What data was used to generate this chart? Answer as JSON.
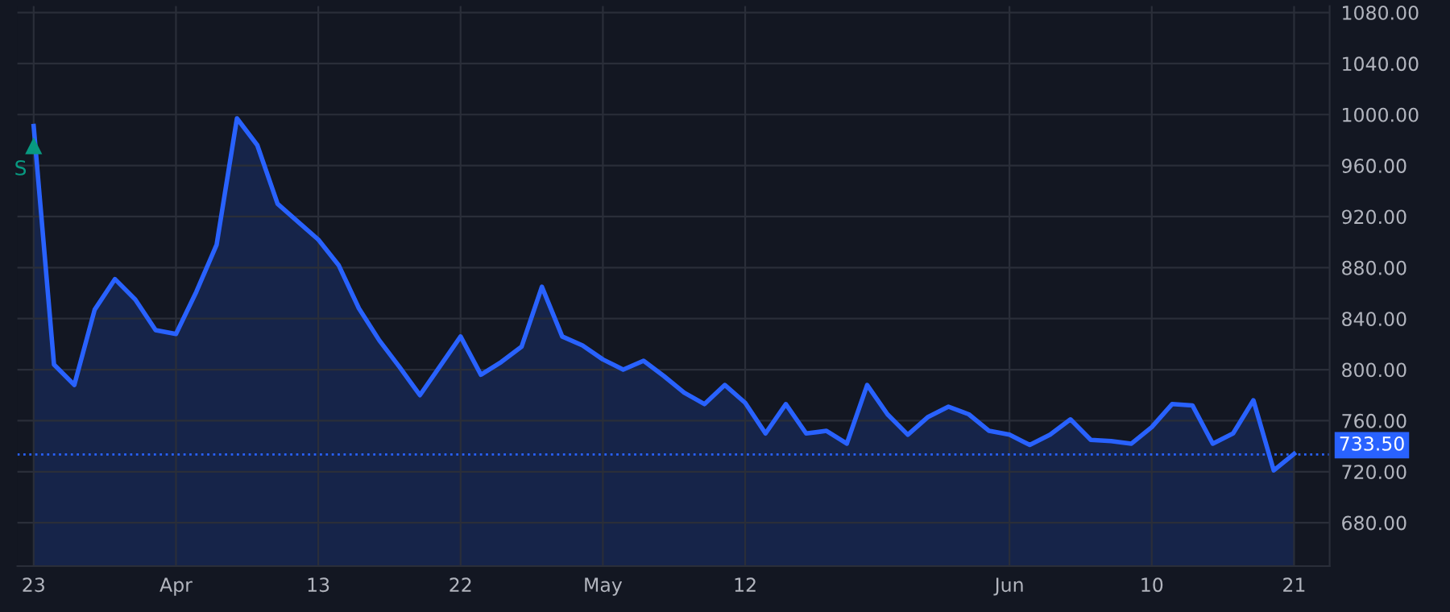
{
  "chart_data": {
    "type": "area",
    "categories": [
      "23",
      null,
      null,
      null,
      null,
      null,
      null,
      "Apr",
      null,
      null,
      null,
      null,
      null,
      null,
      "13",
      null,
      null,
      null,
      null,
      null,
      null,
      "22",
      null,
      null,
      null,
      null,
      null,
      null,
      "May",
      null,
      null,
      null,
      null,
      null,
      null,
      "12",
      null,
      null,
      null,
      null,
      null,
      null,
      null,
      null,
      null,
      null,
      null,
      null,
      "Jun",
      null,
      null,
      null,
      null,
      null,
      null,
      "10",
      null,
      null,
      null,
      null,
      null,
      null,
      "21"
    ],
    "series": [
      {
        "color": "#2962ff",
        "values": [
          991,
          804,
          788,
          847,
          871,
          855,
          831,
          828,
          861,
          898,
          997,
          976,
          930,
          916,
          902,
          882,
          848,
          823,
          802,
          780,
          803,
          826,
          796,
          806,
          818,
          865,
          826,
          819,
          808,
          800,
          807,
          795,
          782,
          773,
          788,
          774,
          750,
          773,
          750,
          752,
          742,
          788,
          765,
          749,
          763,
          771,
          765,
          752,
          749,
          741,
          749,
          761,
          745,
          744,
          742,
          755,
          773,
          772,
          742,
          750,
          776,
          721,
          734
        ]
      }
    ],
    "ylim": [
      646,
      1085
    ],
    "yticks": [
      {
        "value": 680,
        "label": "680.00"
      },
      {
        "value": 720,
        "label": "720.00"
      },
      {
        "value": 760,
        "label": "760.00"
      },
      {
        "value": 800,
        "label": "800.00"
      },
      {
        "value": 840,
        "label": "840.00"
      },
      {
        "value": 880,
        "label": "880.00"
      },
      {
        "value": 920,
        "label": "920.00"
      },
      {
        "value": 960,
        "label": "960.00"
      },
      {
        "value": 1000,
        "label": "1000.00"
      },
      {
        "value": 1040,
        "label": "1040.00"
      },
      {
        "value": 1080,
        "label": "1080.00"
      }
    ],
    "ref_lines": [
      {
        "axis": "y",
        "value": 733.5,
        "label": "733.50",
        "color": "#2962ff",
        "line_style": "dotted"
      }
    ],
    "annotations": [
      {
        "text": "S",
        "x": "23",
        "y": 975
      }
    ],
    "grid": true,
    "marker": "none",
    "line_style": "solid"
  }
}
